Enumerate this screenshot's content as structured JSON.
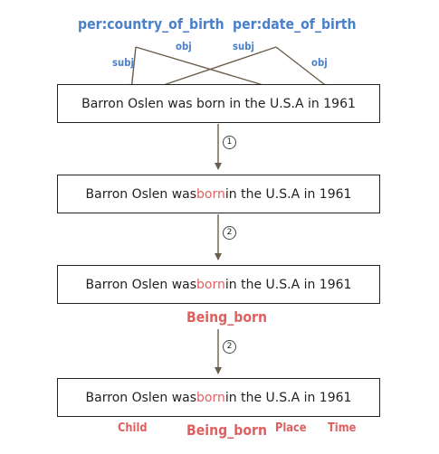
{
  "relations": [
    {
      "label": "per:country_of_birth",
      "subj": "subj",
      "obj": "obj"
    },
    {
      "label": "per:date_of_birth",
      "subj": "subj",
      "obj": "obj"
    }
  ],
  "sentences": [
    {
      "before": "Barron Oslen was born in the U.S.A in 1961",
      "trigger": "",
      "after": ""
    },
    {
      "before": "Barron Oslen was ",
      "trigger": "born",
      "after": " in the U.S.A in 1961"
    },
    {
      "before": "Barron Oslen was ",
      "trigger": "born",
      "after": " in the U.S.A in 1961"
    },
    {
      "before": "Barron Oslen was ",
      "trigger": "born",
      "after": " in the U.S.A in 1961"
    }
  ],
  "steps": [
    "1",
    "2",
    "2"
  ],
  "frame_label": "Being_born",
  "frame_elements": {
    "child": "Child",
    "frame": "Being_born",
    "place": "Place",
    "time": "Time"
  },
  "colors": {
    "relation": "#4a80c9",
    "frame": "#e06060",
    "arrow": "#6b5d4b",
    "box_border": "#222222"
  }
}
